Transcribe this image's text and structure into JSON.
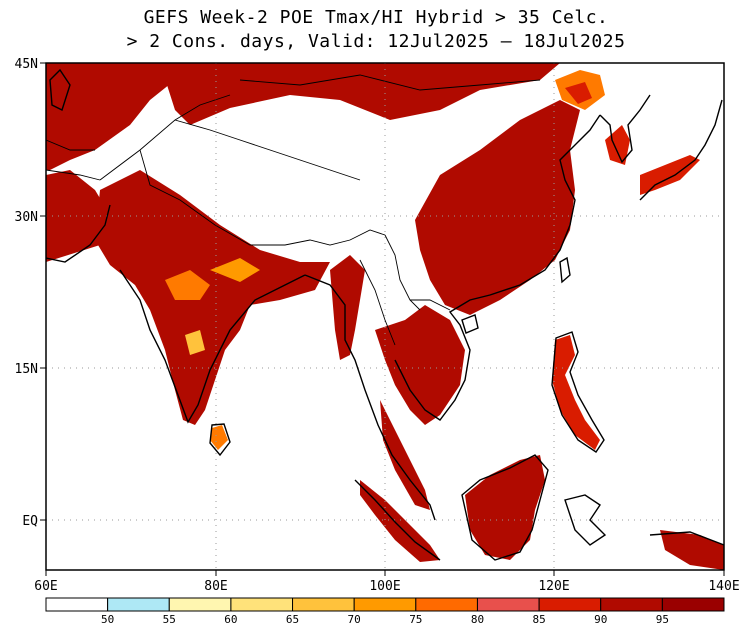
{
  "title": {
    "line1": "GEFS Week-2 POE Tmax/HI Hybrid > 35 Celc.",
    "line2": "> 2 Cons. days, Valid: 12Jul2025 — 18Jul2025"
  },
  "lat_labels": [
    "45N",
    "30N",
    "15N",
    "EQ"
  ],
  "lon_labels": [
    "60E",
    "80E",
    "100E",
    "120E",
    "140E"
  ],
  "colorbar": {
    "ticks": [
      "50",
      "55",
      "60",
      "65",
      "70",
      "75",
      "80",
      "85",
      "90",
      "95"
    ],
    "colors": [
      "#ffffff",
      "#aee8f5",
      "#fff6b0",
      "#ffe27a",
      "#ffc23c",
      "#ff9a00",
      "#ff6a00",
      "#e8504c",
      "#d91c00",
      "#b00a00",
      "#9a0000"
    ]
  },
  "colors": {
    "heat_main": "#b00a00",
    "heat_mid": "#d91c00",
    "heat_edge": "#ff7a00",
    "land_outline": "#000000",
    "grid": "#999999"
  }
}
